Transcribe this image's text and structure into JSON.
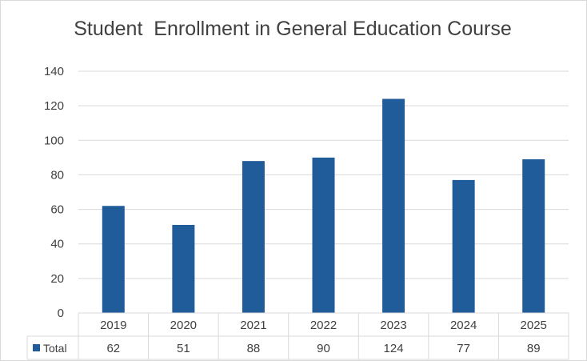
{
  "chart_data": {
    "type": "bar",
    "title": "Student  Enrollment in General Education Course",
    "categories": [
      "2019",
      "2020",
      "2021",
      "2022",
      "2023",
      "2024",
      "2025"
    ],
    "series": [
      {
        "name": "Total",
        "values": [
          62,
          51,
          88,
          90,
          124,
          77,
          89
        ],
        "color": "#1f5c99"
      }
    ],
    "ylim": [
      0,
      140
    ],
    "yticks": [
      0,
      20,
      40,
      60,
      80,
      100,
      120,
      140
    ],
    "grid": true,
    "legend": "data-table",
    "xlabel": "",
    "ylabel": ""
  }
}
